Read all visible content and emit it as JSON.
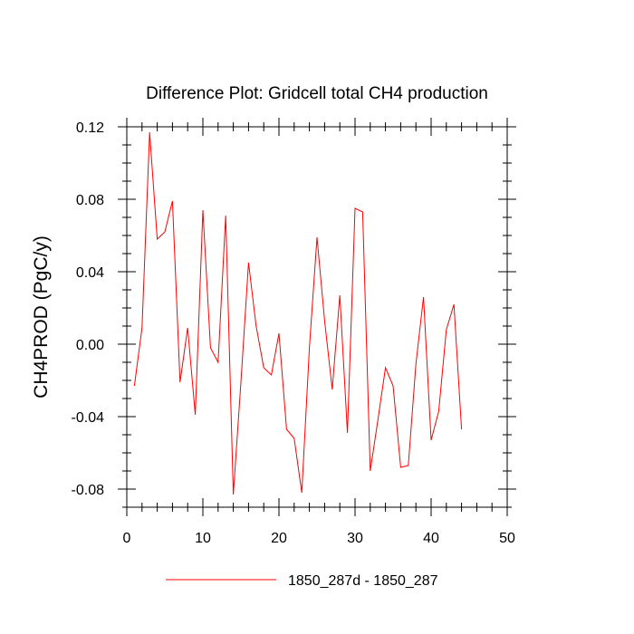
{
  "chart_data": {
    "type": "line",
    "title": "Difference Plot: Gridcell total CH4 production",
    "xlabel": "",
    "ylabel": "CH4PROD  (PgC/y)",
    "xlim": [
      0,
      50
    ],
    "ylim": [
      -0.09,
      0.12
    ],
    "xticks": [
      0,
      10,
      20,
      30,
      40,
      50
    ],
    "xtick_labels": [
      "0",
      "10",
      "20",
      "30",
      "40",
      "50"
    ],
    "yticks": [
      -0.08,
      -0.04,
      0.0,
      0.04,
      0.08,
      0.12
    ],
    "ytick_labels": [
      "-0.08",
      "-0.04",
      "0.00",
      "0.04",
      "0.08",
      "0.12"
    ],
    "grid": false,
    "legend_position": "bottom",
    "series": [
      {
        "name": "1850_287d - 1850_287",
        "color": "#ff0000",
        "x": [
          1,
          2,
          3,
          4,
          5,
          6,
          7,
          8,
          9,
          10,
          11,
          12,
          13,
          14,
          15,
          16,
          17,
          18,
          19,
          20,
          21,
          22,
          23,
          24,
          25,
          26,
          27,
          28,
          29,
          30,
          31,
          32,
          33,
          34,
          35,
          36,
          37,
          38,
          39,
          40,
          41,
          42,
          43,
          44
        ],
        "values": [
          -0.023,
          0.009,
          0.117,
          0.058,
          0.062,
          0.079,
          -0.021,
          0.009,
          -0.039,
          0.074,
          -0.002,
          -0.01,
          0.071,
          -0.083,
          -0.021,
          0.045,
          0.01,
          -0.013,
          -0.017,
          0.006,
          -0.047,
          -0.052,
          -0.082,
          -0.002,
          0.059,
          0.013,
          -0.025,
          0.027,
          -0.049,
          0.075,
          0.073,
          -0.07,
          -0.042,
          -0.013,
          -0.023,
          -0.068,
          -0.067,
          -0.011,
          0.026,
          -0.053,
          -0.037,
          0.008,
          0.022,
          -0.047
        ]
      }
    ]
  }
}
